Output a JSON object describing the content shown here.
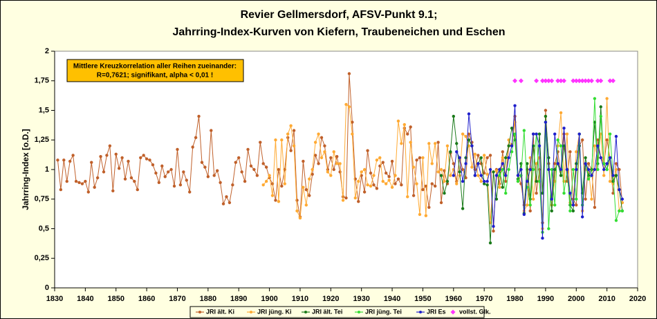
{
  "chart_data": {
    "type": "line",
    "title": [
      "Revier Gellmersdorf, AFSV-Punkt 9.1;",
      "Jahrring-Index-Kurven von Kiefern, Traubeneichen und Eschen"
    ],
    "y_label": "Jahrring-Index [o.D.]",
    "annotation": [
      "Mittlere Kreuzkorrelation aller Reihen zueinander:",
      "R=0,7621; signifikant, alpha < 0,01 !"
    ],
    "xlim": [
      1830,
      2020
    ],
    "xticks": [
      1830,
      1840,
      1850,
      1860,
      1870,
      1880,
      1890,
      1900,
      1910,
      1920,
      1930,
      1940,
      1950,
      1960,
      1970,
      1980,
      1990,
      2000,
      2010,
      2020
    ],
    "ylim": [
      0,
      2
    ],
    "yticks": [
      0,
      {
        "value": 0.25,
        "label": "0,25"
      },
      {
        "value": 0.5,
        "label": "0,5"
      },
      {
        "value": 0.75,
        "label": "0,75"
      },
      1,
      {
        "value": 1.25,
        "label": "1,25"
      },
      {
        "value": 1.5,
        "label": "1,5"
      },
      {
        "value": 1.75,
        "label": "1,75"
      },
      2
    ],
    "x": [
      1831,
      1832,
      1833,
      1834,
      1835,
      1836,
      1837,
      1838,
      1839,
      1840,
      1841,
      1842,
      1843,
      1844,
      1845,
      1846,
      1847,
      1848,
      1849,
      1850,
      1851,
      1852,
      1853,
      1854,
      1855,
      1856,
      1857,
      1858,
      1859,
      1860,
      1861,
      1862,
      1863,
      1864,
      1865,
      1866,
      1867,
      1868,
      1869,
      1870,
      1871,
      1872,
      1873,
      1874,
      1875,
      1876,
      1877,
      1878,
      1879,
      1880,
      1881,
      1882,
      1883,
      1884,
      1885,
      1886,
      1887,
      1888,
      1889,
      1890,
      1891,
      1892,
      1893,
      1894,
      1895,
      1896,
      1897,
      1898,
      1899,
      1900,
      1901,
      1902,
      1903,
      1904,
      1905,
      1906,
      1907,
      1908,
      1909,
      1910,
      1911,
      1912,
      1913,
      1914,
      1915,
      1916,
      1917,
      1918,
      1919,
      1920,
      1921,
      1922,
      1923,
      1924,
      1925,
      1926,
      1927,
      1928,
      1929,
      1930,
      1931,
      1932,
      1933,
      1934,
      1935,
      1936,
      1937,
      1938,
      1939,
      1940,
      1941,
      1942,
      1943,
      1944,
      1945,
      1946,
      1947,
      1948,
      1949,
      1950,
      1951,
      1952,
      1953,
      1954,
      1955,
      1956,
      1957,
      1958,
      1959,
      1960,
      1961,
      1962,
      1963,
      1964,
      1965,
      1966,
      1967,
      1968,
      1969,
      1970,
      1971,
      1972,
      1973,
      1974,
      1975,
      1976,
      1977,
      1978,
      1979,
      1980,
      1981,
      1982,
      1983,
      1984,
      1985,
      1986,
      1987,
      1988,
      1989,
      1990,
      1991,
      1992,
      1993,
      1994,
      1995,
      1996,
      1997,
      1998,
      1999,
      2000,
      2001,
      2002,
      2003,
      2004,
      2005,
      2006,
      2007,
      2008,
      2009,
      2010,
      2011,
      2012,
      2013,
      2014,
      2015
    ],
    "series": [
      {
        "name": "JRI ält. Ki",
        "color": "#c0602a",
        "values": [
          1.08,
          0.83,
          1.08,
          0.9,
          1.07,
          1.12,
          0.9,
          0.89,
          0.88,
          0.9,
          0.81,
          1.06,
          0.85,
          0.93,
          1.11,
          0.98,
          1.12,
          1.2,
          0.82,
          1.13,
          1.01,
          1.1,
          0.92,
          1.07,
          0.93,
          0.9,
          0.83,
          1.1,
          1.12,
          1.09,
          1.08,
          1.04,
          0.97,
          0.89,
          1.03,
          0.94,
          0.98,
          1.0,
          0.86,
          1.17,
          0.87,
          0.98,
          0.91,
          0.81,
          1.19,
          1.27,
          1.45,
          1.06,
          1.02,
          0.94,
          1.33,
          0.95,
          0.99,
          0.89,
          0.71,
          0.77,
          0.72,
          0.87,
          1.06,
          1.1,
          0.98,
          0.9,
          1.17,
          1.03,
          1.0,
          0.95,
          1.23,
          1.05,
          1.02,
          0.93,
          0.88,
          0.74,
          1.0,
          0.86,
          1.0,
          1.27,
          1.16,
          1.33,
          0.74,
          0.6,
          1.07,
          0.83,
          0.78,
          0.96,
          1.12,
          1.05,
          1.27,
          1.2,
          1.0,
          1.1,
          1.0,
          1.11,
          0.98,
          0.77,
          0.76,
          1.81,
          1.4,
          0.92,
          0.73,
          0.95,
          0.81,
          1.16,
          0.97,
          0.87,
          0.84,
          1.03,
          1.06,
          0.97,
          0.94,
          1.07,
          0.88,
          0.92,
          0.87,
          1.35,
          1.3,
          1.36,
          0.78,
          1.08,
          1.1,
          0.83,
          0.86,
          0.68,
          0.88,
          0.86,
          1.23,
          0.72,
          0.99,
          0.88,
          1.14,
          1.05,
          0.9,
          1.1,
          1.0,
          0.93,
          1.3,
          1.23,
          1.0,
          1.12,
          1.05,
          0.97,
          1.1,
          1.12,
          0.48,
          1.0,
          0.88,
          1.15,
          0.9,
          1.2,
          1.21,
          1.45,
          0.95,
          0.88,
          0.7,
          1.0,
          0.65,
          1.3,
          0.8,
          1.0,
          0.55,
          1.5,
          1.05,
          0.75,
          1.05,
          1.15,
          0.95,
          1.3,
          0.9,
          1.15,
          0.75,
          0.7,
          1.2,
          1.25,
          0.75,
          1.05,
          1.0,
          0.68,
          1.25,
          1.1,
          1.05,
          1.25,
          1.1,
          0.8,
          1.05,
          1.0,
          0.72
        ]
      },
      {
        "name": "JRI jüng. Ki",
        "color": "#ffaa33",
        "values": [
          null,
          null,
          null,
          null,
          null,
          null,
          null,
          null,
          null,
          null,
          null,
          null,
          null,
          null,
          null,
          null,
          null,
          null,
          null,
          null,
          null,
          null,
          null,
          null,
          null,
          null,
          null,
          null,
          null,
          null,
          null,
          null,
          null,
          null,
          null,
          null,
          null,
          null,
          null,
          null,
          null,
          null,
          null,
          null,
          null,
          null,
          null,
          null,
          null,
          null,
          null,
          null,
          null,
          null,
          null,
          null,
          null,
          null,
          null,
          null,
          null,
          null,
          null,
          null,
          null,
          null,
          null,
          0.87,
          0.9,
          0.95,
          0.78,
          1.25,
          0.73,
          1.25,
          0.88,
          1.3,
          1.37,
          1.2,
          0.65,
          0.59,
          0.85,
          0.7,
          0.92,
          1.0,
          1.23,
          1.3,
          1.1,
          1.15,
          0.98,
          0.95,
          1.15,
          1.05,
          1.05,
          0.74,
          1.55,
          1.53,
          1.3,
          0.76,
          0.9,
          0.98,
          1.0,
          0.87,
          0.86,
          0.95,
          1.08,
          1.1,
          0.9,
          0.88,
          0.91,
          0.85,
          0.95,
          1.41,
          1.22,
          1.38,
          0.77,
          1.23,
          1.02,
          0.88,
          0.62,
          1.1,
          0.61,
          1.22,
          1.05,
          1.22,
          0.98,
          1.0,
          0.9,
          1.2,
          0.95,
          1.0,
          0.88,
          0.95,
          1.3,
          1.28,
          1.2,
          1.02,
          1.13,
          0.95,
          0.9,
          1.12,
          0.96,
          0.55,
          0.98,
          0.99,
          0.85,
          1.1,
          0.95,
          1.25,
          1.2,
          1.4,
          0.9,
          0.95,
          0.65,
          0.7,
          1.1,
          0.75,
          1.05,
          1.1,
          0.5,
          1.45,
          1.0,
          0.7,
          0.9,
          1.2,
          1.48,
          0.9,
          1.3,
          0.72,
          0.7,
          1.15,
          1.3,
          0.65,
          1.0,
          1.0,
          0.75,
          1.2,
          1.1,
          1.3,
          0.95,
          1.6,
          0.9,
          0.88,
          1.0,
          0.65,
          0.72
        ]
      },
      {
        "name": "JRI ält. Tei",
        "color": "#1a7a1a",
        "values": [
          null,
          null,
          null,
          null,
          null,
          null,
          null,
          null,
          null,
          null,
          null,
          null,
          null,
          null,
          null,
          null,
          null,
          null,
          null,
          null,
          null,
          null,
          null,
          null,
          null,
          null,
          null,
          null,
          null,
          null,
          null,
          null,
          null,
          null,
          null,
          null,
          null,
          null,
          null,
          null,
          null,
          null,
          null,
          null,
          null,
          null,
          null,
          null,
          null,
          null,
          null,
          null,
          null,
          null,
          null,
          null,
          null,
          null,
          null,
          null,
          null,
          null,
          null,
          null,
          null,
          null,
          null,
          null,
          null,
          null,
          null,
          null,
          null,
          null,
          null,
          null,
          null,
          null,
          null,
          null,
          null,
          null,
          null,
          null,
          null,
          null,
          null,
          null,
          null,
          null,
          null,
          null,
          null,
          null,
          null,
          null,
          null,
          null,
          null,
          null,
          null,
          null,
          null,
          null,
          null,
          null,
          null,
          null,
          null,
          null,
          null,
          null,
          null,
          null,
          null,
          null,
          null,
          null,
          null,
          null,
          null,
          null,
          null,
          null,
          null,
          0.95,
          0.8,
          0.9,
          1.15,
          1.45,
          1.22,
          0.98,
          0.67,
          1.1,
          1.25,
          1.2,
          0.95,
          1.05,
          1.1,
          0.88,
          0.87,
          0.38,
          0.98,
          0.75,
          1.0,
          0.85,
          1.1,
          1.2,
          1.35,
          1.25,
          0.92,
          1.05,
          0.63,
          1.05,
          0.75,
          1.2,
          0.9,
          1.3,
          0.8,
          1.45,
          1.1,
          0.65,
          1.0,
          1.05,
          0.95,
          1.2,
          1.0,
          0.7,
          0.65,
          1.05,
          1.2,
          0.8,
          1.1,
          0.95,
          1.0,
          1.4,
          1.05,
          1.53,
          1.05,
          1.0,
          1.1,
          0.9,
          0.95,
          0.83,
          0.65
        ]
      },
      {
        "name": "JRI jüng. Tei",
        "color": "#33dd33",
        "values": [
          null,
          null,
          null,
          null,
          null,
          null,
          null,
          null,
          null,
          null,
          null,
          null,
          null,
          null,
          null,
          null,
          null,
          null,
          null,
          null,
          null,
          null,
          null,
          null,
          null,
          null,
          null,
          null,
          null,
          null,
          null,
          null,
          null,
          null,
          null,
          null,
          null,
          null,
          null,
          null,
          null,
          null,
          null,
          null,
          null,
          null,
          null,
          null,
          null,
          null,
          null,
          null,
          null,
          null,
          null,
          null,
          null,
          null,
          null,
          null,
          null,
          null,
          null,
          null,
          null,
          null,
          null,
          null,
          null,
          null,
          null,
          null,
          null,
          null,
          null,
          null,
          null,
          null,
          null,
          null,
          null,
          null,
          null,
          null,
          null,
          null,
          null,
          null,
          null,
          null,
          null,
          null,
          null,
          null,
          null,
          null,
          null,
          null,
          null,
          null,
          null,
          null,
          null,
          null,
          null,
          null,
          null,
          null,
          null,
          null,
          null,
          null,
          null,
          null,
          null,
          null,
          null,
          null,
          null,
          null,
          null,
          null,
          null,
          null,
          null,
          null,
          null,
          null,
          null,
          null,
          null,
          null,
          null,
          null,
          null,
          null,
          null,
          null,
          null,
          null,
          null,
          null,
          null,
          null,
          0.95,
          1.0,
          0.8,
          1.0,
          1.15,
          1.3,
          0.9,
          0.95,
          1.33,
          0.85,
          0.7,
          1.0,
          1.3,
          0.9,
          0.47,
          1.4,
          0.5,
          1.0,
          0.7,
          1.25,
          1.2,
          0.8,
          1.0,
          0.65,
          1.0,
          0.75,
          1.3,
          0.7,
          1.05,
          0.92,
          0.95,
          1.6,
          1.0,
          1.45,
          1.05,
          1.0,
          1.3,
          0.95,
          0.57,
          0.65,
          0.65
        ]
      },
      {
        "name": "JRI Es",
        "color": "#1f1fcc",
        "values": [
          null,
          null,
          null,
          null,
          null,
          null,
          null,
          null,
          null,
          null,
          null,
          null,
          null,
          null,
          null,
          null,
          null,
          null,
          null,
          null,
          null,
          null,
          null,
          null,
          null,
          null,
          null,
          null,
          null,
          null,
          null,
          null,
          null,
          null,
          null,
          null,
          null,
          null,
          null,
          null,
          null,
          null,
          null,
          null,
          null,
          null,
          null,
          null,
          null,
          null,
          null,
          null,
          null,
          null,
          null,
          null,
          null,
          null,
          null,
          null,
          null,
          null,
          null,
          null,
          null,
          null,
          null,
          null,
          null,
          null,
          null,
          null,
          null,
          null,
          null,
          null,
          null,
          null,
          null,
          null,
          null,
          null,
          null,
          null,
          null,
          null,
          null,
          null,
          null,
          null,
          null,
          null,
          null,
          null,
          null,
          null,
          null,
          null,
          null,
          null,
          null,
          null,
          null,
          null,
          null,
          null,
          null,
          null,
          null,
          null,
          null,
          null,
          null,
          null,
          null,
          null,
          null,
          null,
          null,
          null,
          null,
          null,
          null,
          null,
          null,
          null,
          null,
          null,
          null,
          0.95,
          1.15,
          1.1,
          0.9,
          1.05,
          1.47,
          1.2,
          0.95,
          1.05,
          0.95,
          0.9,
          0.9,
          1.0,
          0.52,
          0.95,
          1.0,
          1.05,
          0.95,
          1.1,
          1.2,
          1.54,
          0.95,
          1.0,
          0.62,
          0.9,
          1.0,
          1.3,
          1.3,
          1.2,
          0.42,
          1.4,
          1.0,
          0.75,
          1.3,
          1.05,
          1.0,
          1.35,
          1.0,
          0.8,
          0.7,
          1.0,
          1.3,
          0.6,
          1.05,
          1.0,
          0.95,
          1.0,
          1.2,
          1.1,
          1.0,
          1.05,
          1.1,
          0.95,
          1.28,
          0.83,
          0.75
        ]
      },
      {
        "name": "vollst. Glk.",
        "color": "#ff33ff",
        "type": "scatter",
        "x": [
          1980,
          1982,
          1987,
          1989,
          1990,
          1991,
          1992,
          1994,
          1995,
          1996,
          1999,
          2000,
          2001,
          2002,
          2003,
          2004,
          2005,
          2007,
          2008,
          2011,
          2012
        ],
        "values": [
          1.75,
          1.75,
          1.75,
          1.75,
          1.75,
          1.75,
          1.75,
          1.75,
          1.75,
          1.75,
          1.75,
          1.75,
          1.75,
          1.75,
          1.75,
          1.75,
          1.75,
          1.75,
          1.75,
          1.75,
          1.75
        ]
      }
    ]
  }
}
